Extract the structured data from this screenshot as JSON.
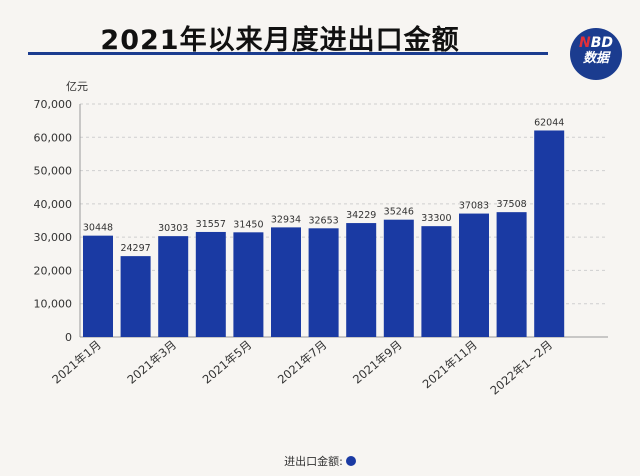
{
  "chart_data": {
    "type": "bar",
    "title": "2021年以来月度进出口金额",
    "ylabel": "亿元",
    "xlabel": "",
    "ylim": [
      0,
      70000
    ],
    "yticks": [
      "0",
      "10,000",
      "20,000",
      "30,000",
      "40,000",
      "50,000",
      "60,000",
      "70,000"
    ],
    "tick_labels": [
      "2021年1月",
      "2021年3月",
      "2021年5月",
      "2021年7月",
      "2021年9月",
      "2021年11月",
      "2022年1~2月"
    ],
    "values": [
      30448,
      24297,
      30303,
      31557,
      31450,
      32934,
      32653,
      34229,
      35246,
      33300,
      37083,
      37508,
      62044
    ],
    "legend": "进出口金额:",
    "grid": true,
    "bar_color": "#1a3aa3"
  },
  "logo": {
    "line1_accent": "N",
    "line1": "BD",
    "line2": "数据"
  }
}
